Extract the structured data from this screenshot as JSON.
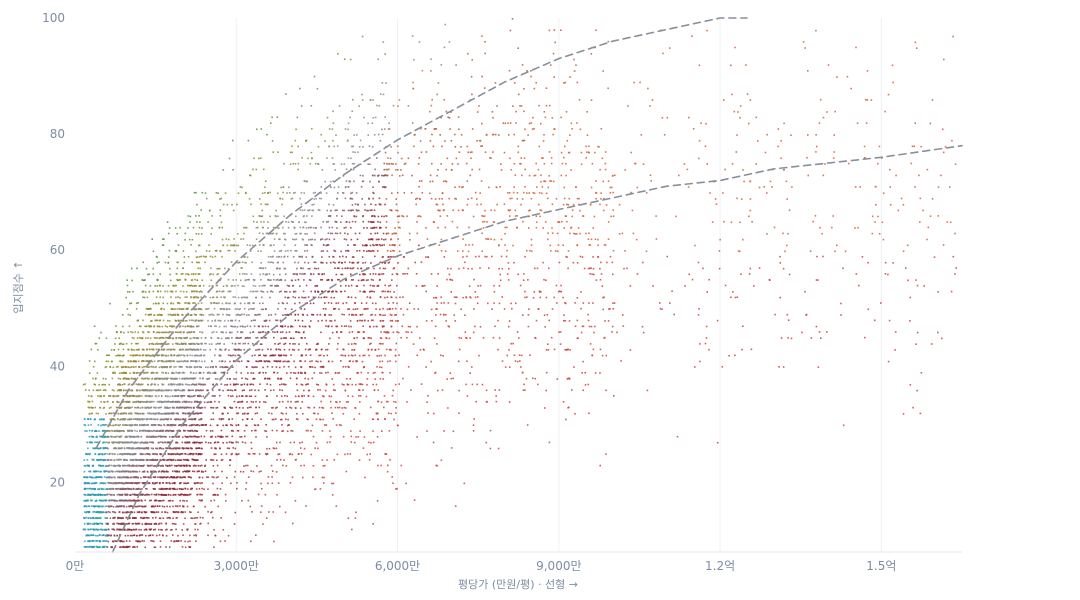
{
  "chart_data": {
    "type": "scatter",
    "title": "",
    "xlabel": "평당가 (만원/평) · 선형 →",
    "ylabel": "입지점수 ↑",
    "x_unit": "만원/평",
    "xlim": [
      0,
      16500
    ],
    "ylim": [
      8,
      100
    ],
    "x_scale": "linear",
    "x_ticks": [
      {
        "value": 0,
        "label": "0만"
      },
      {
        "value": 3000,
        "label": "3,000만"
      },
      {
        "value": 6000,
        "label": "6,000만"
      },
      {
        "value": 9000,
        "label": "9,000만"
      },
      {
        "value": 12000,
        "label": "1.2억"
      },
      {
        "value": 15000,
        "label": "1.5억"
      }
    ],
    "y_ticks": [
      {
        "value": 20,
        "label": "20"
      },
      {
        "value": 40,
        "label": "40"
      },
      {
        "value": 60,
        "label": "60"
      },
      {
        "value": 80,
        "label": "80"
      },
      {
        "value": 100,
        "label": "100"
      }
    ],
    "grid": {
      "vertical": true,
      "horizontal": false,
      "color": "#eef1f5"
    },
    "legend": "none",
    "color_encoding": {
      "description": "point color shifts from teal at low price/score, to green at high score and low price, to red/orange at high price",
      "stops": {
        "teal": "#2e9bb0",
        "green": "#2f9a4a",
        "olive": "#9a8a2a",
        "gray": "#8a8e96",
        "maroon": "#8c2a3c",
        "red": "#c8463e",
        "orange": "#d9772f"
      }
    },
    "trend_lines": [
      {
        "name": "",
        "style": "dashed",
        "color": "#8a8e9a",
        "points": [
          [
            400,
            26
          ],
          [
            1000,
            36
          ],
          [
            2000,
            48
          ],
          [
            3000,
            58
          ],
          [
            4000,
            66
          ],
          [
            5000,
            73
          ],
          [
            6000,
            79
          ],
          [
            7000,
            84
          ],
          [
            8000,
            89
          ],
          [
            9000,
            93
          ],
          [
            10000,
            96
          ],
          [
            11000,
            98
          ],
          [
            12000,
            100
          ],
          [
            12500,
            100
          ]
        ]
      },
      {
        "name": "",
        "style": "dashed",
        "color": "#8a8e9a",
        "points": [
          [
            700,
            8
          ],
          [
            1200,
            18
          ],
          [
            2000,
            30
          ],
          [
            3000,
            41
          ],
          [
            4000,
            49
          ],
          [
            5000,
            55
          ],
          [
            6000,
            59
          ],
          [
            7000,
            62
          ],
          [
            8000,
            65
          ],
          [
            9000,
            67
          ],
          [
            10000,
            69
          ],
          [
            11000,
            71
          ],
          [
            12000,
            72
          ],
          [
            13000,
            74
          ],
          [
            14000,
            75
          ],
          [
            15000,
            76
          ],
          [
            16500,
            78
          ]
        ]
      }
    ],
    "point_clusters": [
      {
        "x_range": [
          200,
          1200
        ],
        "y_range": [
          9,
          70
        ],
        "density": "very_high",
        "dominant_color": "teal-green"
      },
      {
        "x_range": [
          500,
          3000
        ],
        "y_range": [
          9,
          82
        ],
        "density": "very_high",
        "dominant_color": "green-gray-maroon"
      },
      {
        "x_range": [
          3000,
          6000
        ],
        "y_range": [
          10,
          95
        ],
        "density": "high",
        "dominant_color": "gray-red"
      },
      {
        "x_range": [
          6000,
          9000
        ],
        "y_range": [
          14,
          100
        ],
        "density": "medium",
        "dominant_color": "red-orange"
      },
      {
        "x_range": [
          9000,
          16500
        ],
        "y_range": [
          20,
          100
        ],
        "density": "low",
        "dominant_color": "orange-red"
      }
    ],
    "n_points_approx": 20000
  }
}
